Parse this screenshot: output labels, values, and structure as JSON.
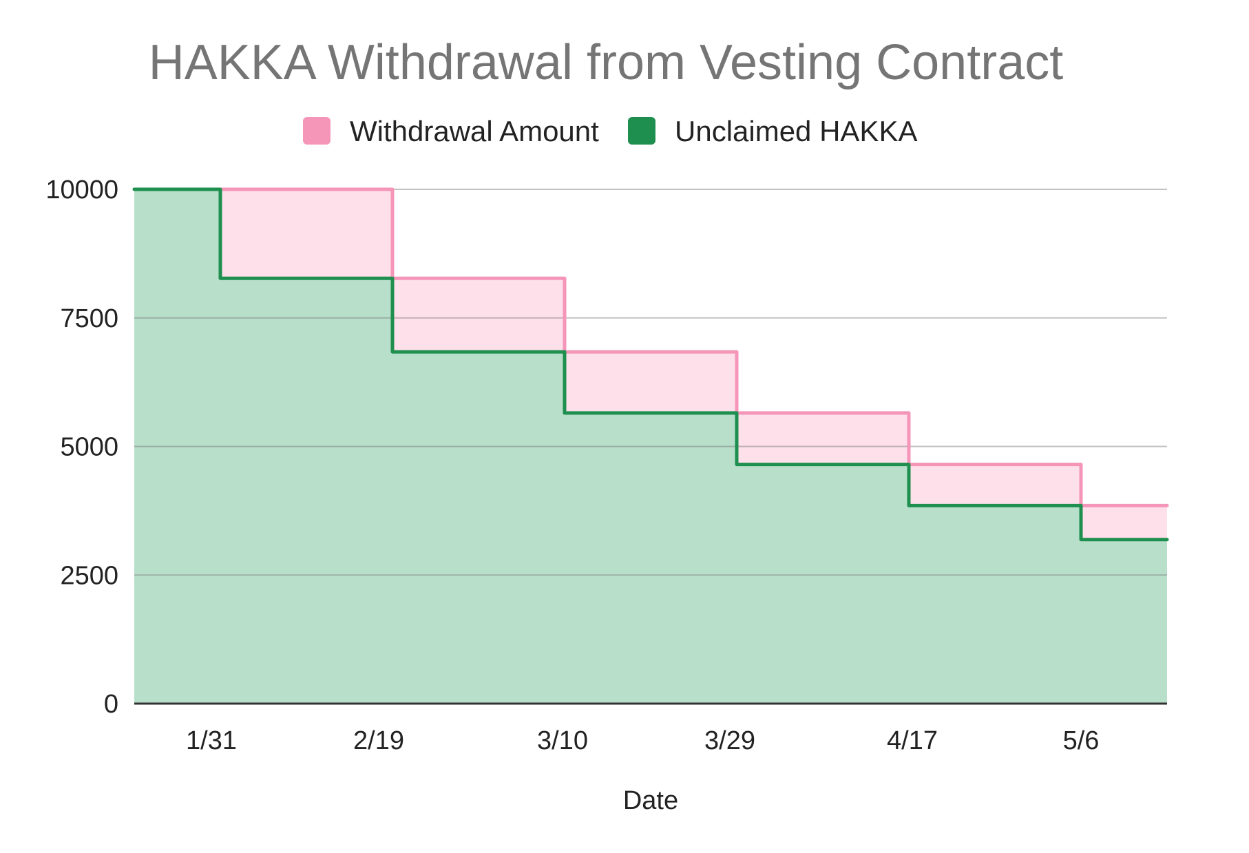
{
  "chart_data": {
    "type": "area",
    "step": true,
    "title": "HAKKA Withdrawal from Vesting Contract",
    "xlabel": "Date",
    "ylabel": "",
    "ylim": [
      0,
      10000
    ],
    "y_ticks": [
      0,
      2500,
      5000,
      7500,
      10000
    ],
    "x_tick_labels": [
      "1/31",
      "2/19",
      "3/10",
      "3/29",
      "4/17",
      "5/6"
    ],
    "legend_position": "top",
    "grid": true,
    "series": [
      {
        "name": "Withdrawal Amount",
        "color": "#f596b8",
        "fill": "#fde0ea",
        "values": [
          10000,
          10000,
          8270,
          6840,
          5650,
          4650,
          3850
        ]
      },
      {
        "name": "Unclaimed HAKKA",
        "color": "#1e8f4e",
        "fill": "#b8dfca",
        "values": [
          10000,
          8270,
          6840,
          5650,
          4650,
          3850,
          3190
        ]
      }
    ]
  }
}
